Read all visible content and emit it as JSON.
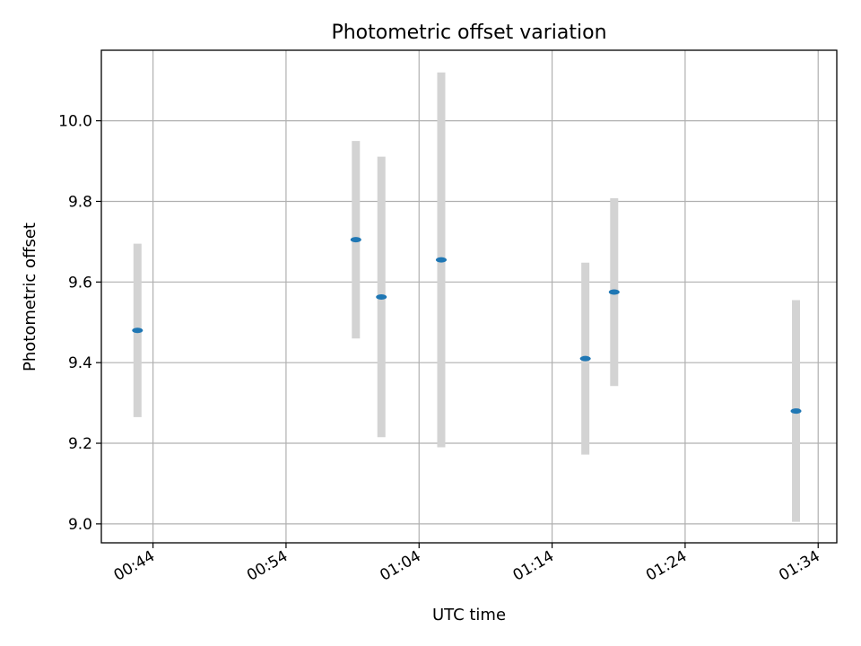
{
  "chart_data": {
    "type": "scatter",
    "title": "Photometric offset variation",
    "xlabel": "UTC time",
    "ylabel": "Photometric offset",
    "x_ticks": [
      "00:44",
      "00:54",
      "01:04",
      "01:14",
      "01:24",
      "01:34"
    ],
    "y_ticks": [
      "9.0",
      "9.2",
      "9.4",
      "9.6",
      "9.8",
      "10.0"
    ],
    "xlim": [
      "00:40:07",
      "01:35:24"
    ],
    "ylim": [
      8.953,
      10.175
    ],
    "grid": true,
    "colors": {
      "marker": "#1f77b4",
      "errorbar": "#d3d3d3"
    },
    "points": [
      {
        "time": "00:42:50",
        "y": 9.48,
        "err": 0.215
      },
      {
        "time": "00:59:15",
        "y": 9.705,
        "err": 0.245
      },
      {
        "time": "01:01:10",
        "y": 9.563,
        "err": 0.348
      },
      {
        "time": "01:05:40",
        "y": 9.655,
        "err": 0.465
      },
      {
        "time": "01:16:30",
        "y": 9.41,
        "err": 0.238
      },
      {
        "time": "01:18:40",
        "y": 9.575,
        "err": 0.233
      },
      {
        "time": "01:32:20",
        "y": 9.28,
        "err": 0.275
      }
    ]
  }
}
